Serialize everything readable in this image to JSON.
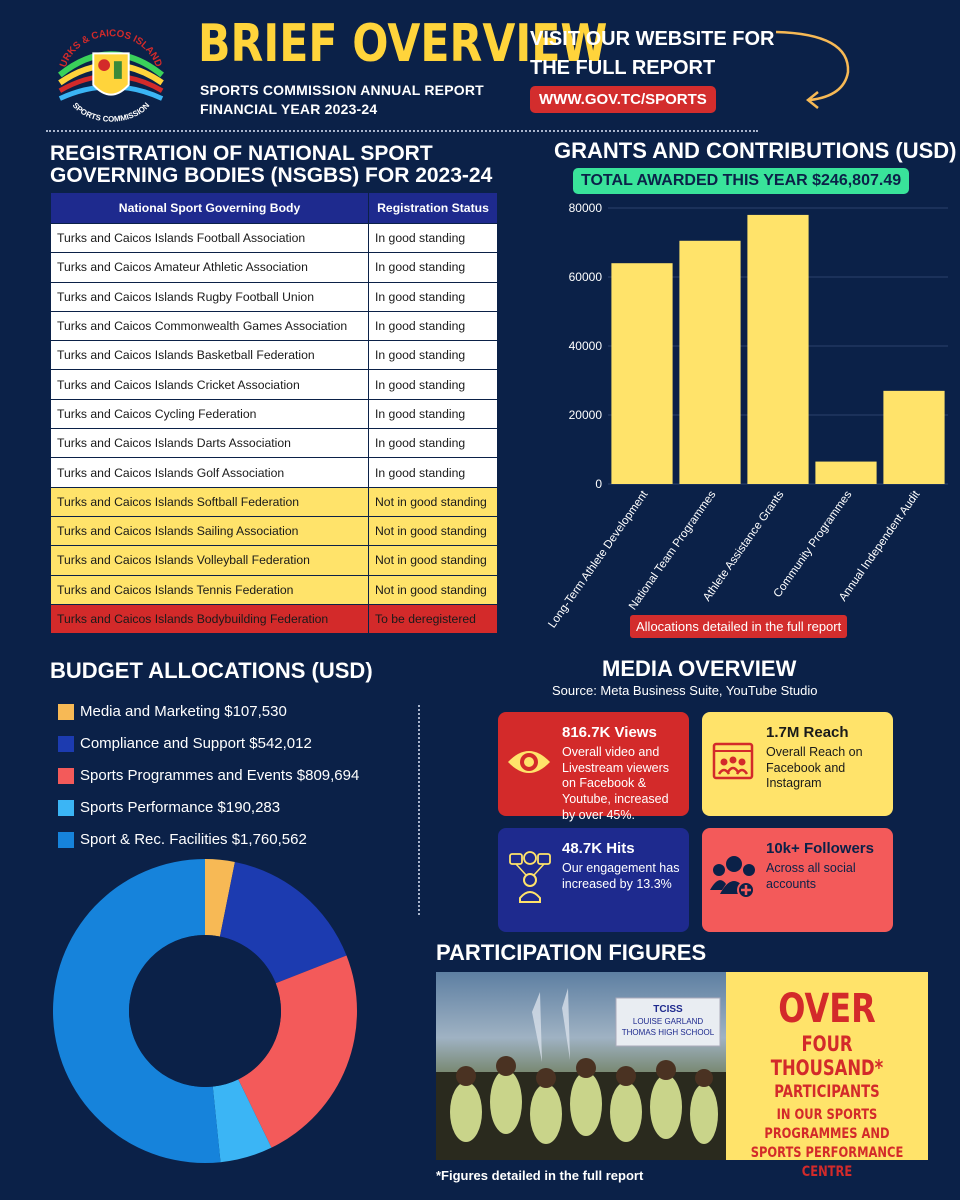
{
  "header": {
    "title": "BRIEF OVERVIEW",
    "subtitle_line1": "SPORTS COMMISSION ANNUAL REPORT",
    "subtitle_line2": "FINANCIAL YEAR 2023-24",
    "visit_line1": "VISIT OUR WEBSITE FOR",
    "visit_line2": "THE FULL REPORT",
    "website": "WWW.GOV.TC/SPORTS",
    "logo_text_top": "TURKS & CAICOS ISLANDS",
    "logo_text_bottom": "SPORTS COMMISSION"
  },
  "nsgb": {
    "title_line1": "REGISTRATION OF NATIONAL SPORT",
    "title_line2": "GOVERNING BODIES (NSGBs) FOR 2023-24",
    "col1": "National Sport Governing Body",
    "col2": "Registration Status",
    "rows": [
      {
        "name": "Turks and Caicos Islands Football Association",
        "status": "In good standing"
      },
      {
        "name": "Turks and Caicos Amateur Athletic Association",
        "status": "In good standing"
      },
      {
        "name": "Turks and Caicos Islands Rugby Football Union",
        "status": "In good standing"
      },
      {
        "name": "Turks and Caicos Commonwealth Games Association",
        "status": "In good standing"
      },
      {
        "name": "Turks and Caicos Islands Basketball Federation",
        "status": "In good standing"
      },
      {
        "name": "Turks and Caicos Islands Cricket Association",
        "status": "In good standing"
      },
      {
        "name": "Turks and Caicos Cycling Federation",
        "status": "In good standing"
      },
      {
        "name": "Turks and Caicos Islands Darts Association",
        "status": "In good standing"
      },
      {
        "name": "Turks and Caicos Islands Golf Association",
        "status": "In good standing"
      },
      {
        "name": "Turks and Caicos Islands Softball Federation",
        "status": "Not in good standing"
      },
      {
        "name": "Turks and Caicos Islands Sailing Association",
        "status": "Not in good standing"
      },
      {
        "name": "Turks and Caicos Islands Volleyball Federation",
        "status": "Not in good standing"
      },
      {
        "name": "Turks and Caicos Islands Tennis Federation",
        "status": "Not in good standing"
      },
      {
        "name": "Turks and Caicos Islands Bodybuilding Federation",
        "status": "To be deregistered"
      }
    ]
  },
  "grants": {
    "title": "GRANTS AND CONTRIBUTIONS (USD)",
    "total": "TOTAL AWARDED THIS YEAR $246,807.49",
    "note": "Allocations detailed in the full report"
  },
  "chart_data": {
    "type": "bar",
    "categories": [
      "Long-Term Athlete Development",
      "National Team Programmes",
      "Athlete Assistance Grants",
      "Community Programmes",
      "Annual Independent Audit"
    ],
    "values": [
      64000,
      70500,
      78000,
      6500,
      27000
    ],
    "ylim": [
      0,
      80000
    ],
    "yticks": [
      0,
      20000,
      40000,
      60000,
      80000
    ],
    "grid": true,
    "bar_color": "#ffe36a"
  },
  "budget": {
    "title": "BUDGET ALLOCATIONS (USD)",
    "items": [
      {
        "label": "Media and Marketing $107,530",
        "value": 107530,
        "color": "#f7b955"
      },
      {
        "label": "Compliance and Support $542,012",
        "value": 542012,
        "color": "#1c3bb0"
      },
      {
        "label": "Sports Programmes and Events $809,694",
        "value": 809694,
        "color": "#f35a5a"
      },
      {
        "label": "Sports Performance $190,283",
        "value": 190283,
        "color": "#3bb5f5"
      },
      {
        "label": "Sport & Rec. Facilities $1,760,562",
        "value": 1760562,
        "color": "#1683db"
      }
    ]
  },
  "media": {
    "title": "MEDIA OVERVIEW",
    "source": "Source: Meta Business Suite, YouTube Studio",
    "views_metric": "816.7K Views",
    "views_desc": "Overall video and Livestream viewers on Facebook & Youtube, increased by over 45%.",
    "reach_metric": "1.7M Reach",
    "reach_desc": "Overall Reach on Facebook and Instagram",
    "hits_metric": "48.7K Hits",
    "hits_desc": "Our engagement has increased by 13.3%",
    "followers_metric": "10k+ Followers",
    "followers_desc": "Across all social accounts"
  },
  "participation": {
    "title": "PARTICIPATION FIGURES",
    "over": "OVER",
    "line1": "FOUR THOUSAND*",
    "line2": "PARTICIPANTS",
    "line3": "IN OUR SPORTS PROGRAMMES AND",
    "line4": "SPORTS PERFORMANCE CENTRE",
    "banner": "TCISS",
    "banner_school_1": "LOUISE GARLAND",
    "banner_school_2": "THOMAS HIGH SCHOOL",
    "footnote": "*Figures detailed in the full report"
  }
}
